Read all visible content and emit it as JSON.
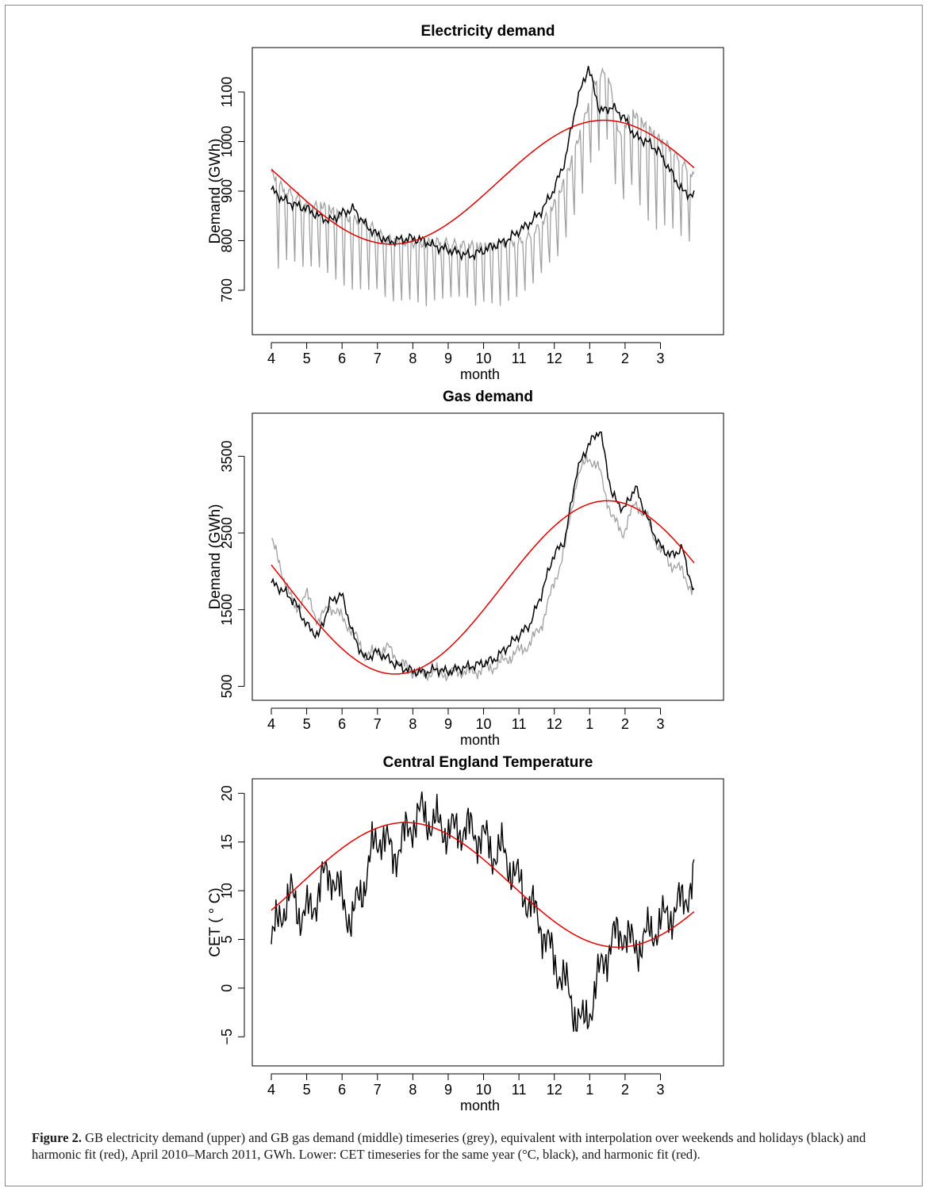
{
  "chart_data": [
    {
      "type": "line",
      "title": "Electricity demand",
      "xlabel": "month",
      "ylabel": "Demand (GWh)",
      "xticks": [
        "4",
        "5",
        "6",
        "7",
        "8",
        "9",
        "10",
        "11",
        "12",
        "1",
        "2",
        "3"
      ],
      "xlim": [
        0,
        12
      ],
      "ylim": [
        620,
        1180
      ],
      "yticks": [
        700,
        800,
        900,
        1000,
        1100
      ],
      "series": [
        {
          "color": "#a0a0a0",
          "kind": "daily_with_weekend_dips",
          "values": [
            938,
            905,
            892,
            870,
            872,
            860,
            845,
            842,
            832,
            810,
            800,
            795,
            792,
            800,
            798,
            795,
            792,
            788,
            790,
            795,
            800,
            815,
            845,
            885,
            950,
            1030,
            1120,
            1150,
            1010,
            1060,
            1035,
            1010,
            990,
            960,
            930
          ],
          "dip": [
            170,
            140,
            140,
            130,
            130,
            130,
            135,
            135,
            125,
            130,
            120,
            110,
            120,
            115,
            115,
            115,
            125,
            110,
            115,
            110,
            110,
            110,
            110,
            120,
            120,
            130,
            150,
            150,
            150,
            170,
            180,
            160,
            155,
            150,
            140
          ]
        },
        {
          "color": "#000000",
          "kind": "interpolated",
          "values": [
            903,
            883,
            872,
            865,
            850,
            840,
            855,
            865,
            832,
            812,
            798,
            802,
            805,
            800,
            788,
            782,
            775,
            770,
            780,
            790,
            800,
            818,
            835,
            860,
            900,
            960,
            1080,
            1150,
            1060,
            1070,
            1050,
            1010,
            1000,
            980,
            940,
            900,
            890
          ]
        },
        {
          "color": "#e00000",
          "kind": "harmonic_fit",
          "mean": 918,
          "amp": 125,
          "peak_month_index": 9.4
        }
      ]
    },
    {
      "type": "line",
      "title": "Gas demand",
      "xlabel": "month",
      "ylabel": "Demand (GWh)",
      "xticks": [
        "4",
        "5",
        "6",
        "7",
        "8",
        "9",
        "10",
        "11",
        "12",
        "1",
        "2",
        "3"
      ],
      "xlim": [
        0,
        12
      ],
      "ylim": [
        380,
        4000
      ],
      "yticks": [
        500,
        1500,
        2500,
        3500
      ],
      "series": [
        {
          "color": "#a0a0a0",
          "kind": "daily",
          "values": [
            2420,
            1950,
            1500,
            1700,
            1350,
            1550,
            1400,
            1200,
            900,
            950,
            1000,
            800,
            700,
            650,
            700,
            660,
            700,
            680,
            720,
            760,
            850,
            950,
            1050,
            1300,
            1800,
            2300,
            3200,
            3500,
            3300,
            2700,
            2500,
            2900,
            2700,
            2300,
            2100,
            2000,
            1700
          ]
        },
        {
          "color": "#000000",
          "kind": "interpolated",
          "values": [
            1850,
            1750,
            1600,
            1300,
            1150,
            1600,
            1700,
            1150,
            850,
            950,
            850,
            750,
            700,
            680,
            720,
            690,
            730,
            760,
            800,
            850,
            1000,
            1150,
            1300,
            1700,
            2200,
            2400,
            3300,
            3650,
            3850,
            3000,
            2800,
            3100,
            2700,
            2350,
            2200,
            2300,
            1700
          ]
        },
        {
          "color": "#e00000",
          "kind": "harmonic_fit",
          "mean": 1790,
          "amp": 1130,
          "peak_month_index": 9.5
        }
      ]
    },
    {
      "type": "line",
      "title": "Central England Temperature",
      "xlabel": "month",
      "ylabel": "CET ( ° C)",
      "xticks": [
        "4",
        "5",
        "6",
        "7",
        "8",
        "9",
        "10",
        "11",
        "12",
        "1",
        "2",
        "3"
      ],
      "xlim": [
        0,
        12
      ],
      "ylim": [
        -7.5,
        21
      ],
      "yticks": [
        -5,
        0,
        5,
        10,
        15,
        20
      ],
      "series": [
        {
          "color": "#000000",
          "kind": "daily",
          "values": [
            4.5,
            8,
            9.5,
            7.5,
            8,
            11,
            12,
            9,
            7,
            10,
            14,
            16,
            13.5,
            15,
            17,
            18,
            17,
            16.5,
            16,
            16.5,
            16,
            15.5,
            14,
            14,
            12,
            10,
            8,
            6,
            3,
            1,
            -2,
            -4,
            -1,
            3,
            5,
            6,
            4,
            5,
            6,
            7,
            8,
            9,
            11.5
          ]
        },
        {
          "color": "#e00000",
          "kind": "harmonic_fit",
          "mean": 10.6,
          "amp": 6.4,
          "peak_month_index": 3.8
        }
      ]
    }
  ],
  "caption": {
    "label": "Figure 2.",
    "text": " GB electricity demand (upper) and GB gas demand (middle) timeseries (grey), equivalent with interpolation over weekends and holidays (black) and harmonic fit (red), April 2010–March 2011, GWh. Lower: CET timeseries for the same year (°C, black), and harmonic fit (red)."
  }
}
